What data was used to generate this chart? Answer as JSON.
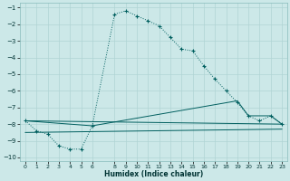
{
  "xlabel": "Humidex (Indice chaleur)",
  "bg_color": "#cce8e8",
  "grid_color": "#b0d4d4",
  "line_color": "#005f5f",
  "xlim": [
    -0.5,
    23.5
  ],
  "ylim": [
    -10.2,
    -0.7
  ],
  "xtick_vals": [
    0,
    1,
    2,
    3,
    4,
    5,
    6,
    8,
    9,
    10,
    11,
    12,
    13,
    14,
    15,
    16,
    17,
    18,
    19,
    20,
    21,
    22,
    23
  ],
  "yticks": [
    -10,
    -9,
    -8,
    -7,
    -6,
    -5,
    -4,
    -3,
    -2,
    -1
  ],
  "line1_x": [
    0,
    1,
    2,
    3,
    4,
    5,
    6,
    8,
    9,
    10,
    11,
    12,
    13,
    14,
    15,
    16,
    17,
    18,
    19,
    20,
    21,
    22,
    23
  ],
  "line1_y": [
    -7.8,
    -8.4,
    -8.6,
    -9.3,
    -9.5,
    -9.5,
    -8.1,
    -1.4,
    -1.2,
    -1.5,
    -1.8,
    -2.1,
    -2.8,
    -3.5,
    -3.6,
    -4.5,
    -5.3,
    -6.0,
    -6.7,
    -7.5,
    -7.8,
    -7.5,
    -8.0
  ],
  "line2_x": [
    0,
    6,
    19,
    20,
    22,
    23
  ],
  "line2_y": [
    -7.8,
    -8.1,
    -6.6,
    -7.5,
    -7.5,
    -8.0
  ],
  "line3_x": [
    0,
    23
  ],
  "line3_y": [
    -7.8,
    -8.0
  ],
  "line4_x": [
    0,
    23
  ],
  "line4_y": [
    -8.5,
    -8.3
  ]
}
